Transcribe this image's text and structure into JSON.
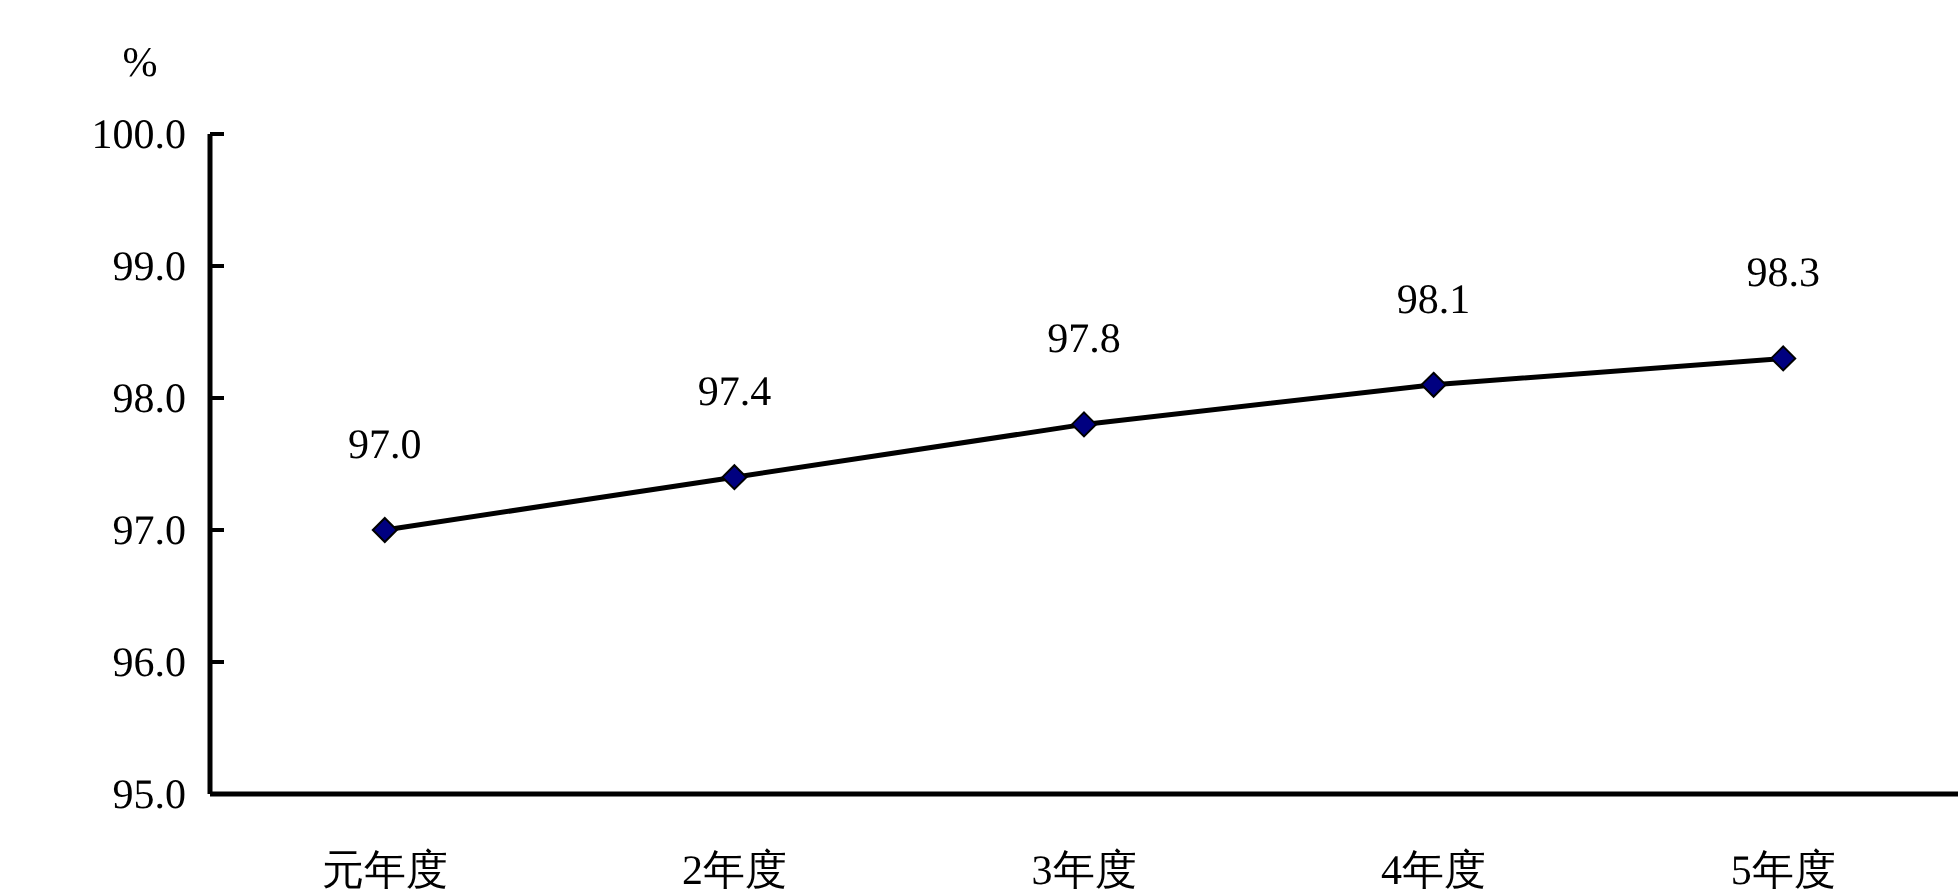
{
  "chart_data": {
    "type": "line",
    "ylabel": "%",
    "categories": [
      "元年度",
      "2年度",
      "3年度",
      "4年度",
      "5年度"
    ],
    "series": [
      {
        "color": "#000080",
        "values": [
          97.0,
          97.4,
          97.8,
          98.1,
          98.3
        ],
        "value_labels": [
          "97.0",
          "97.4",
          "97.8",
          "98.1",
          "98.3"
        ]
      }
    ],
    "ylim": [
      95,
      100
    ],
    "yticks": [
      {
        "value": 95,
        "label": "95.0"
      },
      {
        "value": 96,
        "label": "96.0"
      },
      {
        "value": 97,
        "label": "97.0"
      },
      {
        "value": 98,
        "label": "98.0"
      },
      {
        "value": 99,
        "label": "99.0"
      },
      {
        "value": 100,
        "label": "100.0"
      }
    ],
    "marker": "diamond",
    "line_style": "solid"
  }
}
